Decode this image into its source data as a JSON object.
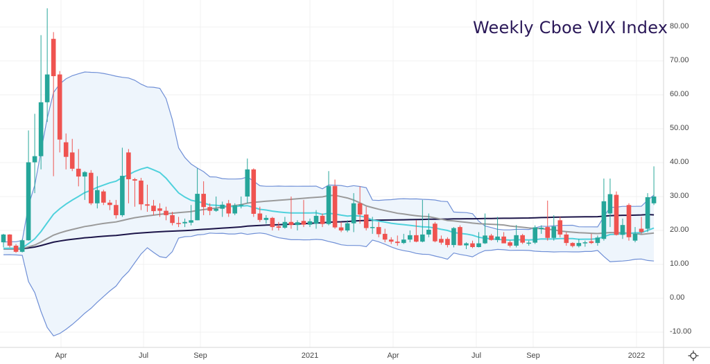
{
  "chart_data": {
    "type": "candlestick",
    "title": "Weekly Cboe VIX Index",
    "ylim": [
      -15,
      88
    ],
    "y_ticks": [
      "80.00",
      "70.00",
      "60.00",
      "50.00",
      "40.00",
      "30.00",
      "20.00",
      "10.00",
      "0.00",
      "-10.00"
    ],
    "y_tick_values": [
      80,
      70,
      60,
      50,
      40,
      30,
      20,
      10,
      0,
      -10
    ],
    "x_ticks": [
      {
        "label": "Apr",
        "week": 9
      },
      {
        "label": "Jul",
        "week": 22
      },
      {
        "label": "Sep",
        "week": 31
      },
      {
        "label": "2021",
        "week": 48
      },
      {
        "label": "Apr",
        "week": 61
      },
      {
        "label": "Jul",
        "week": 74
      },
      {
        "label": "Sep",
        "week": 83
      },
      {
        "label": "2022",
        "week": 100
      }
    ],
    "grid": true,
    "colors": {
      "up": "#26a69a",
      "down": "#ef5350",
      "band": "#6f8fd6",
      "band_fill": "#eef5fc",
      "sma_short": "#4fd1dc",
      "sma_mid": "#9a9a9a",
      "sma_long": "#1b1448",
      "title": "#2a1858"
    },
    "indicators": {
      "bollinger_period": 20,
      "bollinger_mult": 2,
      "sma_short": 20,
      "sma_mid": 50,
      "sma_long": 100
    },
    "ohlc": [
      [
        16.5,
        19.0,
        15.0,
        18.8
      ],
      [
        18.8,
        18.9,
        15.0,
        15.5
      ],
      [
        15.5,
        16.0,
        13.4,
        13.7
      ],
      [
        13.7,
        17.5,
        13.5,
        17.1
      ],
      [
        17.1,
        49.5,
        17.0,
        40.1
      ],
      [
        40.1,
        54.4,
        31.0,
        41.9
      ],
      [
        41.9,
        77.6,
        38.0,
        57.8
      ],
      [
        57.8,
        85.5,
        52.0,
        66.0
      ],
      [
        76.5,
        78.5,
        36.0,
        65.5
      ],
      [
        66.0,
        67.0,
        43.0,
        46.8
      ],
      [
        46.0,
        48.6,
        38.0,
        41.7
      ],
      [
        43.0,
        47.0,
        37.5,
        38.2
      ],
      [
        38.2,
        44.0,
        33.0,
        35.9
      ],
      [
        35.9,
        37.5,
        29.0,
        37.2
      ],
      [
        37.0,
        37.8,
        27.5,
        28.0
      ],
      [
        28.0,
        36.0,
        26.5,
        31.9
      ],
      [
        31.5,
        32.0,
        27.5,
        28.2
      ],
      [
        28.2,
        29.0,
        26.0,
        27.5
      ],
      [
        27.5,
        29.0,
        23.5,
        24.5
      ],
      [
        24.5,
        44.4,
        24.0,
        36.1
      ],
      [
        43.0,
        44.0,
        28.0,
        35.1
      ],
      [
        35.1,
        35.5,
        27.0,
        34.7
      ],
      [
        34.7,
        35.5,
        26.0,
        27.7
      ],
      [
        27.7,
        33.5,
        25.5,
        27.3
      ],
      [
        27.3,
        29.0,
        24.5,
        25.7
      ],
      [
        26.5,
        28.0,
        24.0,
        25.8
      ],
      [
        25.8,
        27.0,
        23.0,
        24.5
      ],
      [
        24.5,
        25.5,
        21.5,
        22.2
      ],
      [
        22.2,
        24.0,
        21.0,
        22.1
      ],
      [
        22.1,
        23.5,
        21.0,
        22.5
      ],
      [
        22.3,
        27.5,
        21.5,
        23.0
      ],
      [
        23.0,
        38.3,
        23.0,
        30.8
      ],
      [
        30.8,
        34.5,
        24.5,
        26.9
      ],
      [
        26.9,
        28.0,
        24.5,
        25.8
      ],
      [
        25.8,
        30.0,
        25.5,
        26.4
      ],
      [
        26.4,
        28.5,
        24.0,
        27.6
      ],
      [
        28.0,
        29.0,
        24.0,
        25.0
      ],
      [
        25.0,
        28.0,
        24.5,
        27.4
      ],
      [
        27.4,
        30.0,
        26.5,
        27.6
      ],
      [
        30.0,
        41.2,
        28.0,
        38.0
      ],
      [
        38.0,
        38.3,
        24.0,
        24.9
      ],
      [
        25.0,
        27.0,
        22.5,
        23.1
      ],
      [
        23.1,
        24.5,
        22.0,
        23.7
      ],
      [
        23.7,
        24.0,
        20.0,
        21.0
      ],
      [
        21.2,
        22.5,
        20.0,
        20.8
      ],
      [
        20.8,
        24.0,
        20.5,
        22.5
      ],
      [
        22.5,
        30.0,
        20.5,
        21.6
      ],
      [
        21.6,
        23.0,
        20.0,
        22.4
      ],
      [
        22.8,
        29.0,
        21.0,
        21.7
      ],
      [
        21.7,
        23.5,
        21.0,
        22.7
      ],
      [
        22.0,
        26.0,
        20.5,
        24.3
      ],
      [
        24.3,
        25.0,
        21.0,
        21.9
      ],
      [
        21.9,
        37.5,
        21.5,
        33.1
      ],
      [
        33.1,
        35.0,
        20.5,
        20.9
      ],
      [
        20.9,
        22.5,
        19.5,
        20.0
      ],
      [
        20.0,
        23.0,
        19.5,
        22.1
      ],
      [
        22.1,
        31.0,
        19.5,
        28.0
      ],
      [
        28.0,
        33.0,
        22.0,
        24.7
      ],
      [
        24.7,
        27.0,
        20.0,
        20.7
      ],
      [
        20.7,
        24.0,
        19.0,
        21.0
      ],
      [
        21.0,
        22.5,
        18.0,
        18.9
      ],
      [
        19.0,
        20.5,
        16.5,
        17.3
      ],
      [
        17.3,
        18.0,
        16.0,
        16.7
      ],
      [
        16.7,
        18.5,
        15.5,
        16.3
      ],
      [
        16.3,
        19.0,
        16.0,
        17.3
      ],
      [
        17.3,
        20.0,
        16.5,
        18.6
      ],
      [
        18.6,
        23.0,
        16.5,
        16.7
      ],
      [
        16.7,
        29.0,
        16.5,
        18.8
      ],
      [
        18.8,
        25.0,
        18.0,
        20.2
      ],
      [
        22.0,
        22.5,
        16.5,
        16.8
      ],
      [
        17.5,
        18.5,
        15.8,
        16.4
      ],
      [
        17.5,
        18.0,
        15.0,
        15.7
      ],
      [
        15.7,
        21.0,
        15.0,
        20.7
      ],
      [
        21.0,
        21.5,
        15.5,
        15.6
      ],
      [
        15.6,
        16.5,
        14.5,
        16.2
      ],
      [
        16.2,
        17.0,
        14.8,
        15.1
      ],
      [
        15.1,
        19.5,
        15.0,
        16.2
      ],
      [
        16.2,
        25.0,
        16.0,
        18.5
      ],
      [
        18.5,
        19.0,
        17.0,
        17.2
      ],
      [
        17.2,
        24.0,
        16.5,
        18.2
      ],
      [
        18.2,
        19.5,
        16.5,
        16.2
      ],
      [
        16.5,
        17.0,
        15.0,
        15.5
      ],
      [
        15.5,
        21.6,
        15.0,
        18.6
      ],
      [
        18.6,
        19.0,
        16.0,
        16.4
      ],
      [
        16.4,
        17.0,
        15.5,
        16.4
      ],
      [
        16.4,
        21.5,
        16.0,
        20.9
      ],
      [
        20.4,
        21.5,
        19.0,
        20.8
      ],
      [
        21.0,
        28.8,
        17.0,
        17.8
      ],
      [
        17.8,
        24.5,
        17.0,
        21.2
      ],
      [
        23.0,
        24.0,
        18.0,
        18.8
      ],
      [
        18.8,
        19.5,
        15.5,
        16.3
      ],
      [
        16.3,
        16.5,
        15.0,
        15.4
      ],
      [
        15.4,
        17.5,
        15.0,
        16.3
      ],
      [
        16.5,
        17.0,
        15.2,
        16.5
      ],
      [
        16.8,
        19.0,
        16.0,
        16.3
      ],
      [
        16.3,
        18.5,
        15.5,
        17.9
      ],
      [
        17.5,
        35.3,
        17.0,
        28.6
      ],
      [
        25.0,
        35.3,
        21.0,
        30.7
      ],
      [
        30.5,
        31.5,
        18.5,
        18.7
      ],
      [
        18.7,
        23.5,
        17.5,
        21.6
      ],
      [
        27.5,
        28.0,
        17.0,
        18.0
      ],
      [
        17.0,
        21.0,
        16.5,
        19.0
      ],
      [
        20.5,
        24.0,
        19.0,
        19.5
      ],
      [
        20.5,
        31.0,
        19.5,
        29.8
      ],
      [
        28.0,
        38.9,
        27.5,
        30.0
      ]
    ]
  }
}
